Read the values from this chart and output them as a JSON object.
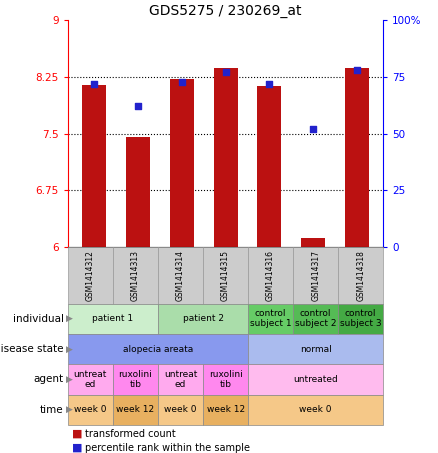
{
  "title": "GDS5275 / 230269_at",
  "samples": [
    "GSM1414312",
    "GSM1414313",
    "GSM1414314",
    "GSM1414315",
    "GSM1414316",
    "GSM1414317",
    "GSM1414318"
  ],
  "bar_values": [
    8.15,
    7.45,
    8.22,
    8.37,
    8.13,
    6.12,
    8.37
  ],
  "dot_values": [
    72,
    62,
    73,
    77,
    72,
    52,
    78
  ],
  "ylim_left": [
    6,
    9
  ],
  "ylim_right": [
    0,
    100
  ],
  "yticks_left": [
    6,
    6.75,
    7.5,
    8.25,
    9
  ],
  "yticks_right": [
    0,
    25,
    50,
    75,
    100
  ],
  "ytick_labels_left": [
    "6",
    "6.75",
    "7.5",
    "8.25",
    "9"
  ],
  "ytick_labels_right": [
    "0",
    "25",
    "50",
    "75",
    "100%"
  ],
  "hlines": [
    6.75,
    7.5,
    8.25
  ],
  "bar_color": "#bb1111",
  "dot_color": "#2222cc",
  "bar_bottom": 6,
  "individual_row": {
    "groups": [
      {
        "label": "patient 1",
        "cols": [
          0,
          1
        ],
        "color": "#cceecc",
        "border": "#888888"
      },
      {
        "label": "patient 2",
        "cols": [
          2,
          3
        ],
        "color": "#aaddaa",
        "border": "#888888"
      },
      {
        "label": "control\nsubject 1",
        "cols": [
          4
        ],
        "color": "#66cc66",
        "border": "#888888"
      },
      {
        "label": "control\nsubject 2",
        "cols": [
          5
        ],
        "color": "#55bb55",
        "border": "#888888"
      },
      {
        "label": "control\nsubject 3",
        "cols": [
          6
        ],
        "color": "#44aa44",
        "border": "#888888"
      }
    ]
  },
  "disease_state_row": {
    "groups": [
      {
        "label": "alopecia areata",
        "cols": [
          0,
          1,
          2,
          3
        ],
        "color": "#8899ee",
        "border": "#888888"
      },
      {
        "label": "normal",
        "cols": [
          4,
          5,
          6
        ],
        "color": "#aabbee",
        "border": "#888888"
      }
    ]
  },
  "agent_row": {
    "groups": [
      {
        "label": "untreat\ned",
        "cols": [
          0
        ],
        "color": "#ffaaee",
        "border": "#888888"
      },
      {
        "label": "ruxolini\ntib",
        "cols": [
          1
        ],
        "color": "#ff88ee",
        "border": "#888888"
      },
      {
        "label": "untreat\ned",
        "cols": [
          2
        ],
        "color": "#ffaaee",
        "border": "#888888"
      },
      {
        "label": "ruxolini\ntib",
        "cols": [
          3
        ],
        "color": "#ff88ee",
        "border": "#888888"
      },
      {
        "label": "untreated",
        "cols": [
          4,
          5,
          6
        ],
        "color": "#ffbbee",
        "border": "#888888"
      }
    ]
  },
  "time_row": {
    "groups": [
      {
        "label": "week 0",
        "cols": [
          0
        ],
        "color": "#f5c888",
        "border": "#888888"
      },
      {
        "label": "week 12",
        "cols": [
          1
        ],
        "color": "#e8b060",
        "border": "#888888"
      },
      {
        "label": "week 0",
        "cols": [
          2
        ],
        "color": "#f5c888",
        "border": "#888888"
      },
      {
        "label": "week 12",
        "cols": [
          3
        ],
        "color": "#e8b060",
        "border": "#888888"
      },
      {
        "label": "week 0",
        "cols": [
          4,
          5,
          6
        ],
        "color": "#f5c888",
        "border": "#888888"
      }
    ]
  },
  "sample_bg_color": "#cccccc",
  "annotation_bar_color": "#bb1111",
  "annotation_dot_color": "#2222cc"
}
